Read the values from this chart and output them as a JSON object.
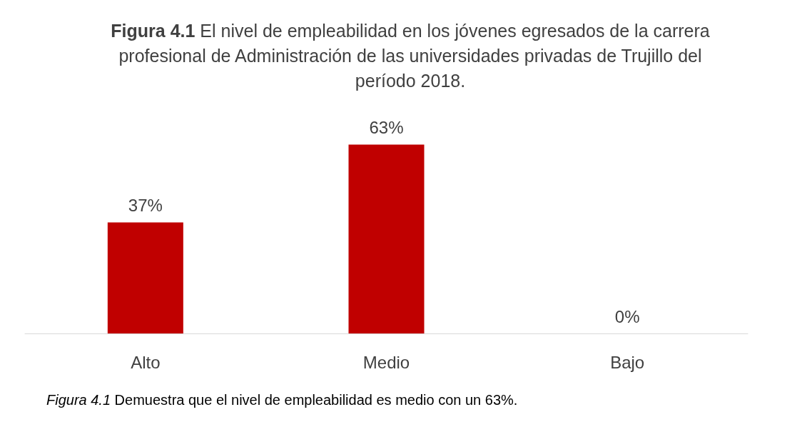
{
  "chart_data": {
    "type": "bar",
    "title": "Figura 4.1 El nivel de empleabilidad en los jóvenes egresados de la carrera profesional de Administración de las universidades privadas de Trujillo del período 2018.",
    "categories": [
      "Alto",
      "Medio",
      "Bajo"
    ],
    "values": [
      37,
      63,
      0
    ],
    "color": "#c00000",
    "value_labels": [
      "37%",
      "63%",
      "0%"
    ],
    "annotations": [
      "Figura 4.1 Demuestra que el nivel de empleabilidad es medio con un 63%."
    ]
  }
}
